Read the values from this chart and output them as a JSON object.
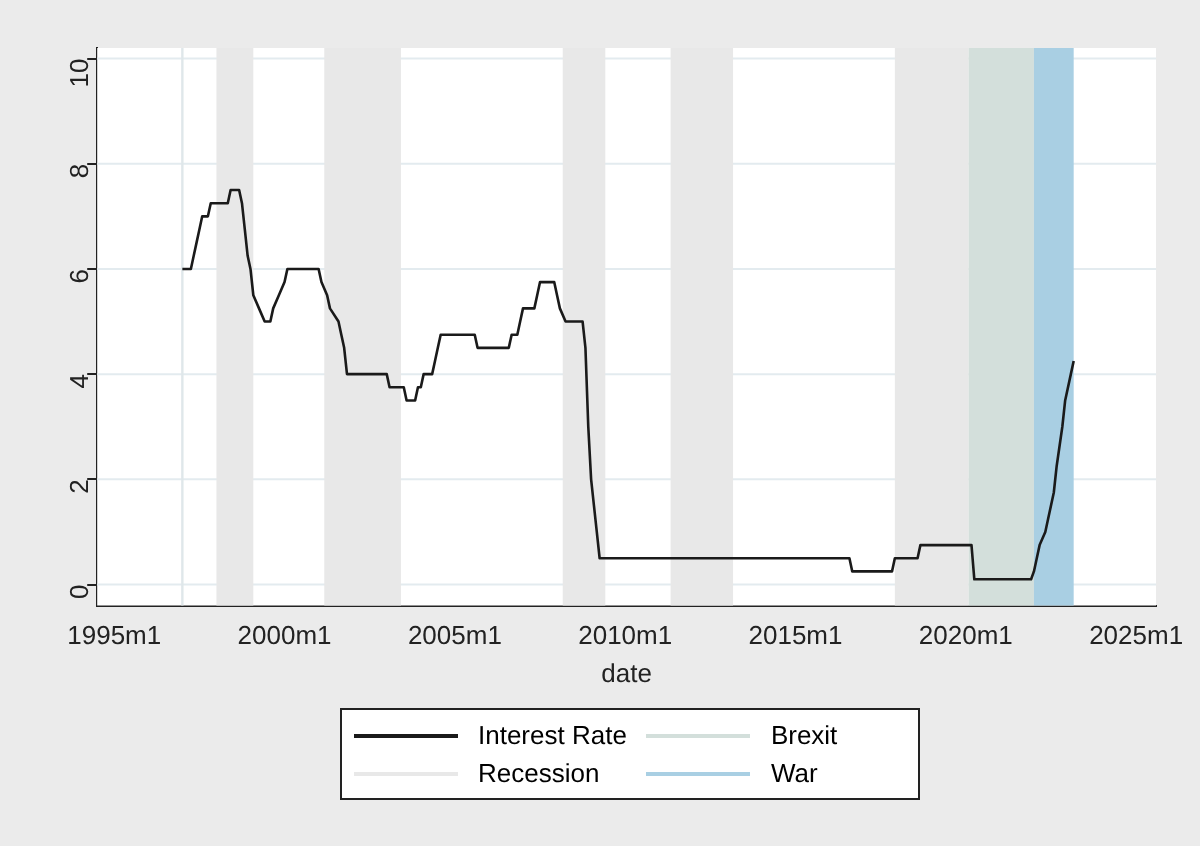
{
  "chart_data": {
    "type": "line",
    "xlabel": "date",
    "xlim": [
      "1994-07",
      "2025-08"
    ],
    "xticks": [
      {
        "value": "1995-01",
        "label": "1995m1"
      },
      {
        "value": "2000-01",
        "label": "2000m1"
      },
      {
        "value": "2005-01",
        "label": "2005m1"
      },
      {
        "value": "2010-01",
        "label": "2010m1"
      },
      {
        "value": "2015-01",
        "label": "2015m1"
      },
      {
        "value": "2020-01",
        "label": "2020m1"
      },
      {
        "value": "2025-01",
        "label": "2025m1"
      }
    ],
    "ylim": [
      -0.4,
      10.2
    ],
    "yticks": [
      0,
      2,
      4,
      6,
      8,
      10
    ],
    "grid": "y",
    "legend": "bottom",
    "marker": "none",
    "line_style": "solid",
    "series": [
      {
        "name": "Interest Rate",
        "color": "#1a1a1a",
        "x": [
          "1997-01",
          "1997-04",
          "1997-05",
          "1997-06",
          "1997-07",
          "1997-08",
          "1997-10",
          "1997-11",
          "1998-05",
          "1998-06",
          "1998-09",
          "1998-10",
          "1998-11",
          "1998-12",
          "1999-01",
          "1999-02",
          "1999-04",
          "1999-06",
          "1999-08",
          "1999-09",
          "1999-11",
          "2000-01",
          "2000-02",
          "2001-01",
          "2001-02",
          "2001-04",
          "2001-05",
          "2001-08",
          "2001-09",
          "2001-10",
          "2001-11",
          "2003-01",
          "2003-02",
          "2003-07",
          "2003-08",
          "2003-11",
          "2003-12",
          "2004-01",
          "2004-02",
          "2004-05",
          "2004-06",
          "2004-07",
          "2004-08",
          "2005-08",
          "2005-09",
          "2006-08",
          "2006-09",
          "2006-11",
          "2006-12",
          "2007-01",
          "2007-05",
          "2007-06",
          "2007-07",
          "2007-12",
          "2008-01",
          "2008-02",
          "2008-04",
          "2008-10",
          "2008-11",
          "2008-12",
          "2009-01",
          "2009-02",
          "2009-03",
          "2009-04",
          "2016-08",
          "2016-09",
          "2017-11",
          "2017-12",
          "2018-08",
          "2018-09",
          "2020-03",
          "2020-04",
          "2021-12",
          "2022-01",
          "2022-02",
          "2022-03",
          "2022-05",
          "2022-06",
          "2022-08",
          "2022-09",
          "2022-11",
          "2022-12",
          "2023-02",
          "2023-03"
        ],
        "values": [
          6.0,
          6.0,
          6.25,
          6.5,
          6.75,
          7.0,
          7.0,
          7.25,
          7.25,
          7.5,
          7.5,
          7.25,
          6.75,
          6.25,
          6.0,
          5.5,
          5.25,
          5.0,
          5.0,
          5.25,
          5.5,
          5.75,
          6.0,
          6.0,
          5.75,
          5.5,
          5.25,
          5.0,
          4.75,
          4.5,
          4.0,
          4.0,
          3.75,
          3.75,
          3.5,
          3.5,
          3.75,
          3.75,
          4.0,
          4.0,
          4.25,
          4.5,
          4.75,
          4.75,
          4.5,
          4.5,
          4.75,
          4.75,
          5.0,
          5.25,
          5.25,
          5.5,
          5.75,
          5.75,
          5.5,
          5.25,
          5.0,
          5.0,
          4.5,
          3.0,
          2.0,
          1.5,
          1.0,
          0.5,
          0.5,
          0.25,
          0.25,
          0.5,
          0.5,
          0.75,
          0.75,
          0.1,
          0.1,
          0.25,
          0.5,
          0.75,
          1.0,
          1.25,
          1.75,
          2.25,
          3.0,
          3.5,
          4.0,
          4.25
        ]
      }
    ],
    "ref_lines": [
      {
        "axis": "x",
        "value": "1997-01",
        "color": "#dfe7ea"
      }
    ],
    "bands": [
      {
        "axis": "x",
        "from": "1998-01",
        "to": "1999-02",
        "label": "Recession",
        "color": "#e8e8e8"
      },
      {
        "axis": "x",
        "from": "2001-03",
        "to": "2003-06",
        "color": "#e8e8e8"
      },
      {
        "axis": "x",
        "from": "2008-03",
        "to": "2009-06",
        "color": "#e8e8e8"
      },
      {
        "axis": "x",
        "from": "2011-05",
        "to": "2013-03",
        "color": "#e8e8e8"
      },
      {
        "axis": "x",
        "from": "2017-12",
        "to": "2020-02",
        "color": "#e8e8e8"
      },
      {
        "axis": "x",
        "from": "2020-02",
        "to": "2022-01",
        "label": "Brexit",
        "color": "#d3dfdb"
      },
      {
        "axis": "x",
        "from": "2022-01",
        "to": "2023-03",
        "label": "War",
        "color": "#a9cfe3"
      }
    ]
  }
}
